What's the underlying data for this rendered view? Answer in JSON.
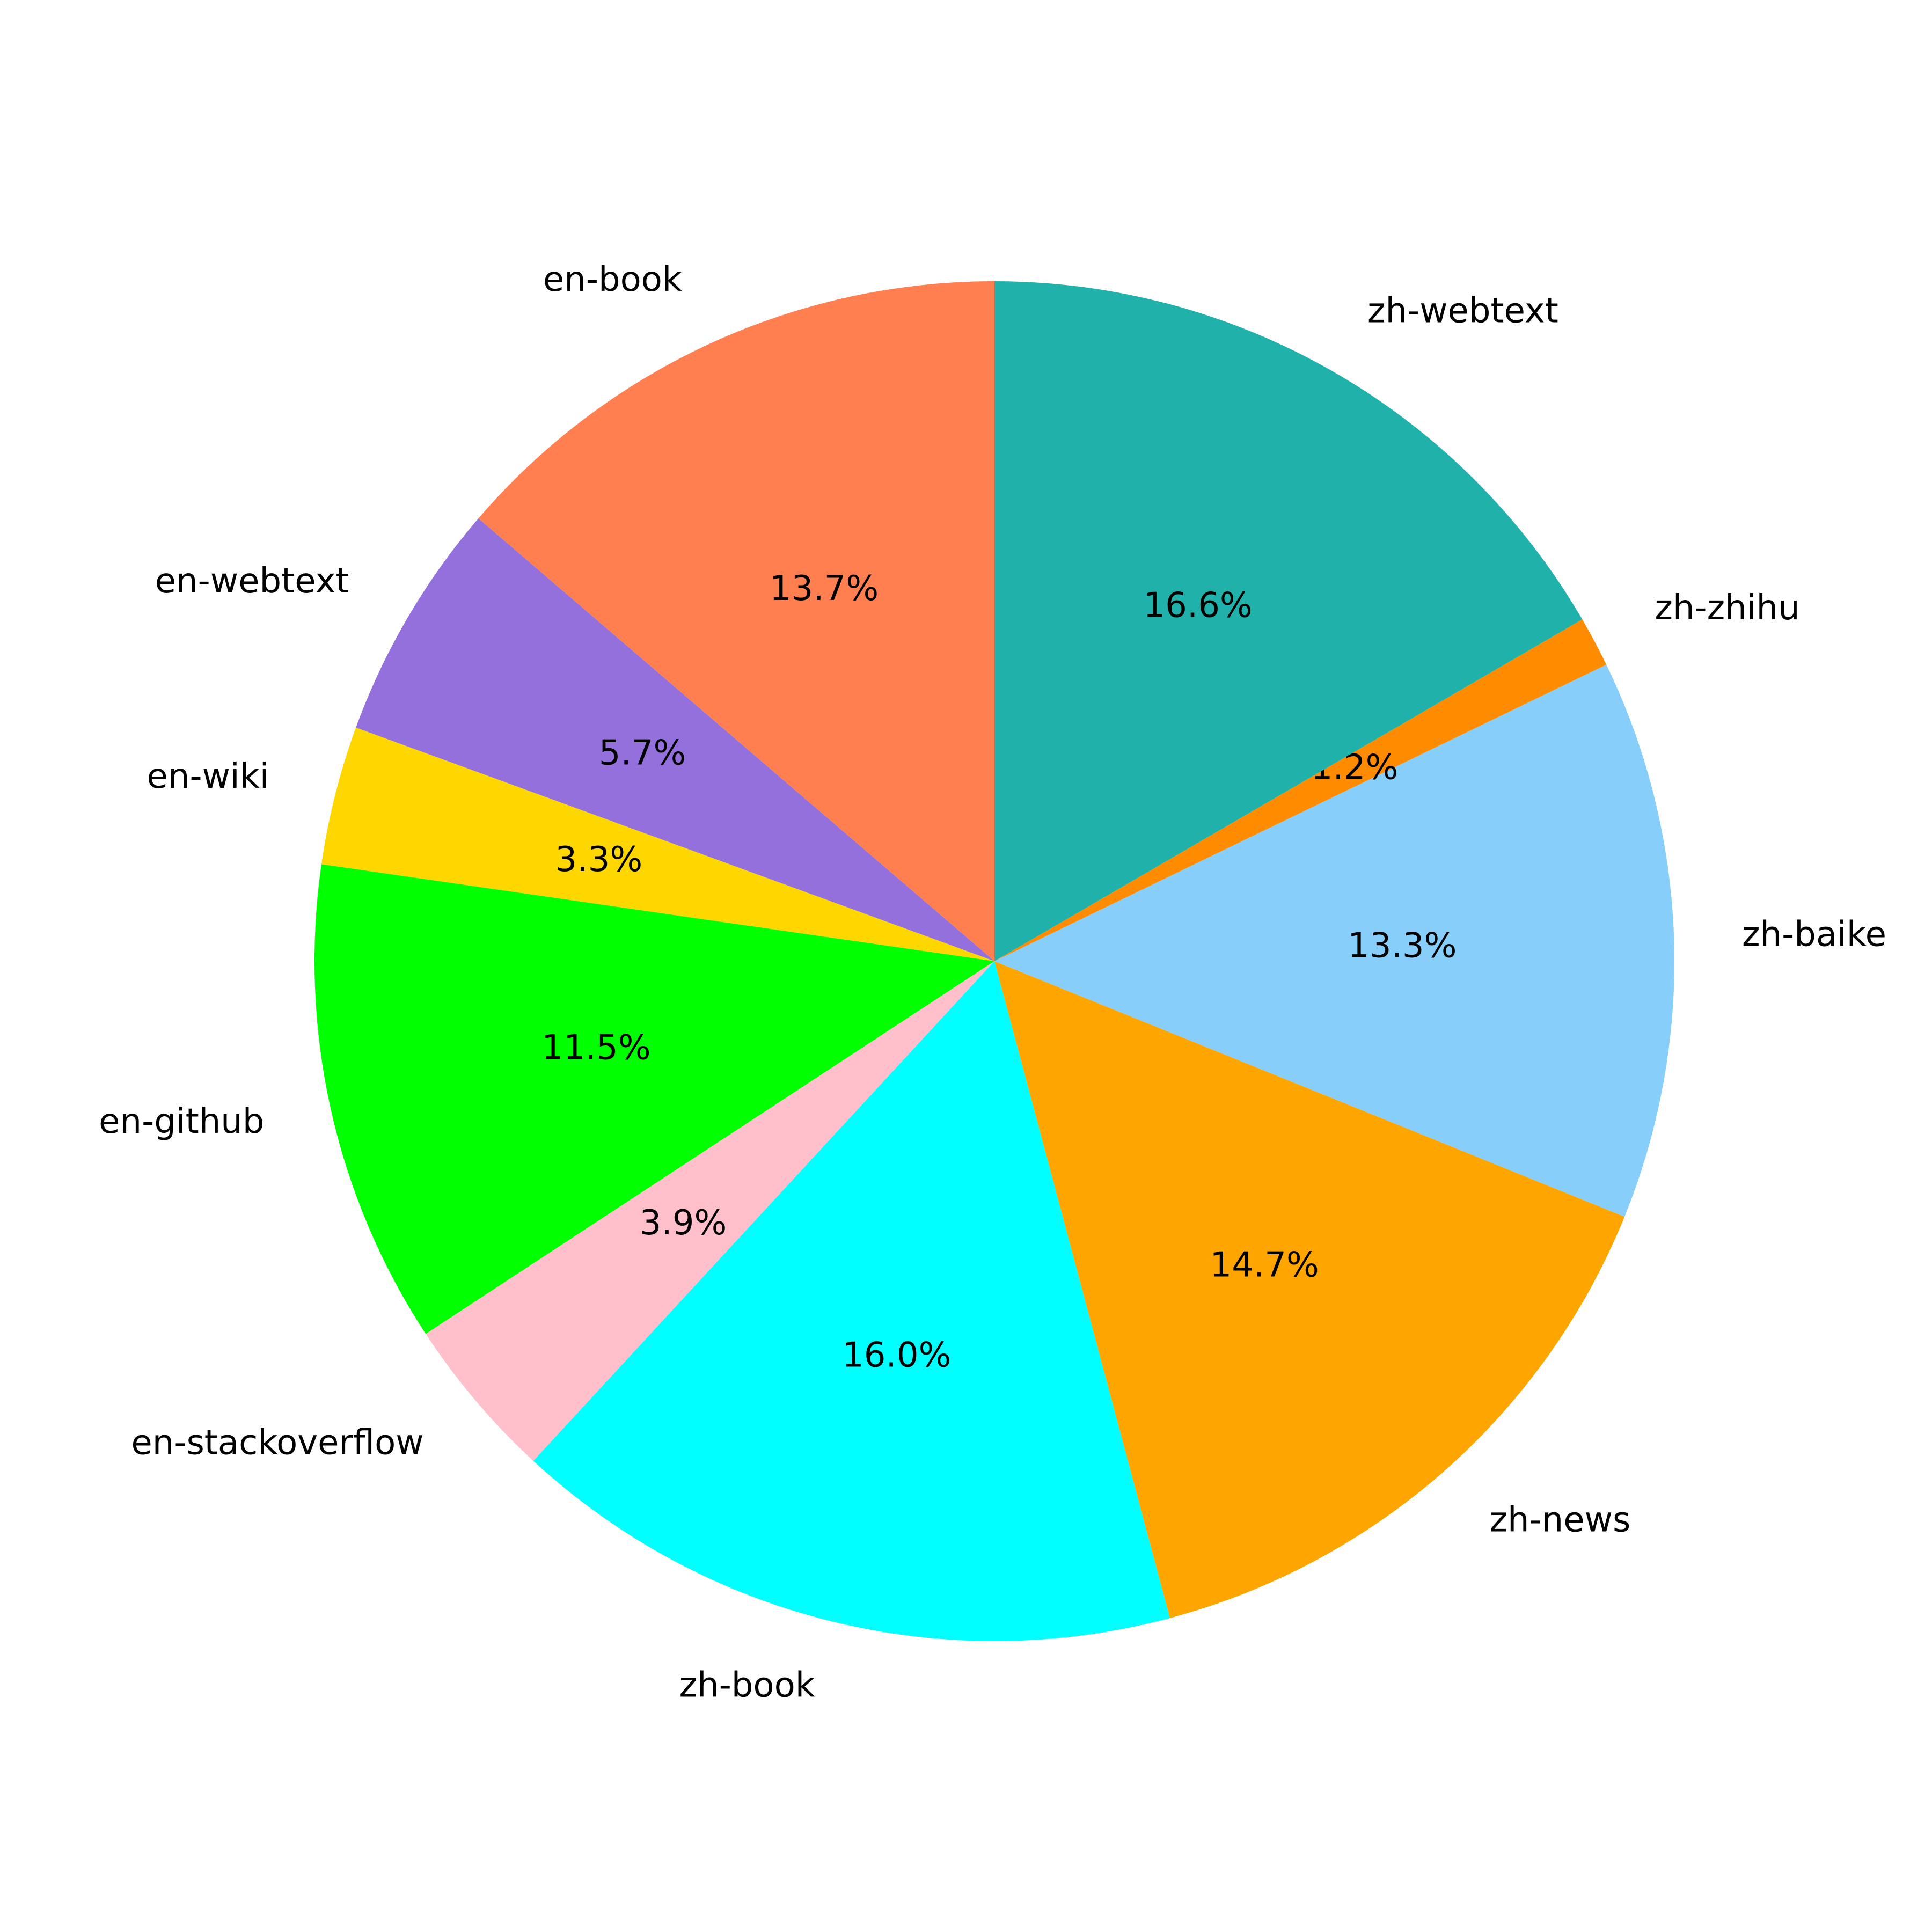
{
  "chart_data": {
    "type": "pie",
    "categories": [
      "en-book",
      "en-webtext",
      "en-wiki",
      "en-github",
      "en-stackoverflow",
      "zh-book",
      "zh-news",
      "zh-baike",
      "zh-zhihu",
      "zh-webtext"
    ],
    "values": [
      13.7,
      5.7,
      3.3,
      11.5,
      3.9,
      16.0,
      14.7,
      13.3,
      1.2,
      16.6
    ],
    "value_labels": [
      "13.7%",
      "5.7%",
      "3.3%",
      "11.5%",
      "3.9%",
      "16.0%",
      "14.7%",
      "13.3%",
      "1.2%",
      "16.6%"
    ],
    "colors": [
      "#FF7F50",
      "#9370DB",
      "#FFD700",
      "#00FF00",
      "#FFC0CB",
      "#00FFFF",
      "#FFA500",
      "#87CEFA",
      "#FF8C00",
      "#20B2AA"
    ]
  }
}
